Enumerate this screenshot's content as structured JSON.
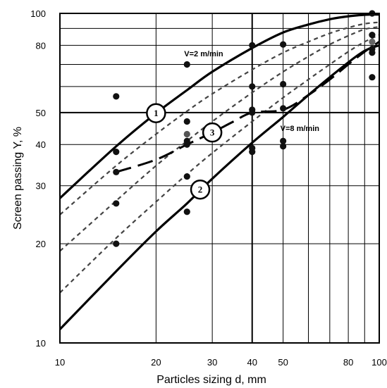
{
  "chart_data": {
    "type": "scatter",
    "title": "",
    "xlabel": "Particles sizing d, mm",
    "ylabel": "Screen passing Y, %",
    "x_scale": "log",
    "y_scale": "log",
    "xlim": [
      10,
      100
    ],
    "ylim": [
      10,
      100
    ],
    "grid": true,
    "x_ticks": [
      {
        "value": 10,
        "label": "10"
      },
      {
        "value": 20,
        "label": "20"
      },
      {
        "value": 30,
        "label": "30"
      },
      {
        "value": 40,
        "label": "40"
      },
      {
        "value": 50,
        "label": "50"
      },
      {
        "value": 80,
        "label": "80"
      },
      {
        "value": 100,
        "label": "100"
      }
    ],
    "y_ticks": [
      {
        "value": 10,
        "label": "10"
      },
      {
        "value": 20,
        "label": "20"
      },
      {
        "value": 30,
        "label": "30"
      },
      {
        "value": 40,
        "label": "40"
      },
      {
        "value": 50,
        "label": "50"
      },
      {
        "value": 80,
        "label": "80"
      },
      {
        "value": 100,
        "label": "100"
      }
    ],
    "x_grid": [
      10,
      20,
      30,
      40,
      50,
      60,
      70,
      80,
      90,
      100
    ],
    "y_grid": [
      10,
      20,
      30,
      40,
      50,
      60,
      70,
      80,
      90,
      100
    ],
    "x_emphasis": [
      40
    ],
    "y_emphasis": [
      50
    ],
    "curves": [
      {
        "name": "",
        "style": "thick-solid",
        "color": "#000000",
        "x": [
          10,
          15,
          20,
          25,
          30,
          40,
          50,
          60,
          70,
          80,
          90,
          100
        ],
        "y": [
          27.5,
          39.5,
          49.8,
          58.5,
          66.5,
          78.5,
          87.5,
          92.5,
          96,
          98,
          99,
          99.2
        ]
      },
      {
        "name": "",
        "style": "short-dash",
        "color": "#444444",
        "x": [
          10,
          15,
          20,
          25,
          30,
          40,
          50,
          60,
          70,
          80,
          90,
          100
        ],
        "y": [
          24.5,
          34.5,
          43,
          50.5,
          57,
          67.5,
          76,
          82,
          87,
          90.5,
          93,
          94
        ]
      },
      {
        "name": "",
        "style": "short-dash",
        "color": "#444444",
        "x": [
          10,
          15,
          20,
          25,
          30,
          40,
          50,
          60,
          70,
          80,
          90,
          100
        ],
        "y": [
          19,
          27,
          34.5,
          41,
          47,
          57.5,
          66.5,
          74,
          80.5,
          85.5,
          89.5,
          91
        ]
      },
      {
        "name": "",
        "style": "short-dash",
        "color": "#444444",
        "x": [
          10,
          15,
          20,
          25,
          30,
          40,
          50,
          60,
          70,
          80,
          90,
          100
        ],
        "y": [
          14.2,
          20.8,
          26.8,
          32.5,
          37.7,
          47,
          55.5,
          63,
          70,
          76.5,
          82,
          86
        ]
      },
      {
        "name": "",
        "style": "long-dash",
        "color": "#000000",
        "x": [
          15,
          20,
          25,
          30,
          35,
          40,
          50,
          60,
          70,
          80,
          90,
          100
        ],
        "y": [
          33,
          36,
          40,
          43.5,
          47,
          50,
          51,
          56.5,
          63,
          70,
          76.5,
          82
        ]
      },
      {
        "name": "",
        "style": "thick-solid",
        "color": "#000000",
        "x": [
          10,
          15,
          20,
          25,
          30,
          40,
          50,
          60,
          70,
          80,
          90,
          100
        ],
        "y": [
          11,
          16.5,
          21.8,
          26.5,
          31.5,
          40.5,
          48.5,
          56.5,
          64,
          71,
          77,
          80
        ]
      }
    ],
    "points": [
      {
        "x": 15,
        "y": 56,
        "color": "#111111"
      },
      {
        "x": 15,
        "y": 38,
        "color": "#111111"
      },
      {
        "x": 15,
        "y": 33,
        "color": "#111111"
      },
      {
        "x": 15,
        "y": 26.5,
        "color": "#111111"
      },
      {
        "x": 15,
        "y": 20,
        "color": "#111111"
      },
      {
        "x": 25,
        "y": 70,
        "color": "#111111"
      },
      {
        "x": 25,
        "y": 47,
        "color": "#111111"
      },
      {
        "x": 25,
        "y": 43,
        "color": "#555555"
      },
      {
        "x": 25,
        "y": 41,
        "color": "#111111"
      },
      {
        "x": 25,
        "y": 40,
        "color": "#111111"
      },
      {
        "x": 25,
        "y": 32,
        "color": "#111111"
      },
      {
        "x": 25,
        "y": 25,
        "color": "#111111"
      },
      {
        "x": 40,
        "y": 80,
        "color": "#111111"
      },
      {
        "x": 40,
        "y": 60,
        "color": "#111111"
      },
      {
        "x": 40,
        "y": 51,
        "color": "#111111"
      },
      {
        "x": 40,
        "y": 50,
        "color": "#111111"
      },
      {
        "x": 40,
        "y": 39,
        "color": "#111111"
      },
      {
        "x": 40,
        "y": 38,
        "color": "#111111"
      },
      {
        "x": 50,
        "y": 80.5,
        "color": "#111111"
      },
      {
        "x": 50,
        "y": 61,
        "color": "#111111"
      },
      {
        "x": 50,
        "y": 51.5,
        "color": "#111111"
      },
      {
        "x": 50,
        "y": 41,
        "color": "#111111"
      },
      {
        "x": 50,
        "y": 39.5,
        "color": "#111111"
      },
      {
        "x": 95,
        "y": 100,
        "color": "#111111"
      },
      {
        "x": 95,
        "y": 86,
        "color": "#111111"
      },
      {
        "x": 95,
        "y": 82,
        "color": "#666666"
      },
      {
        "x": 95,
        "y": 78,
        "color": "#111111"
      },
      {
        "x": 95,
        "y": 76,
        "color": "#111111"
      },
      {
        "x": 95,
        "y": 64,
        "color": "#111111"
      }
    ],
    "curve_markers": [
      {
        "label": "1",
        "x": 20,
        "y": 49.8
      },
      {
        "label": "2",
        "x": 27.5,
        "y": 29.2
      },
      {
        "label": "3",
        "x": 30,
        "y": 43.5
      }
    ],
    "annotations": [
      {
        "text": "V=2 m/min",
        "x": 24.5,
        "y": 74
      },
      {
        "text": "V=8 m/min",
        "x": 49,
        "y": 44
      }
    ]
  }
}
